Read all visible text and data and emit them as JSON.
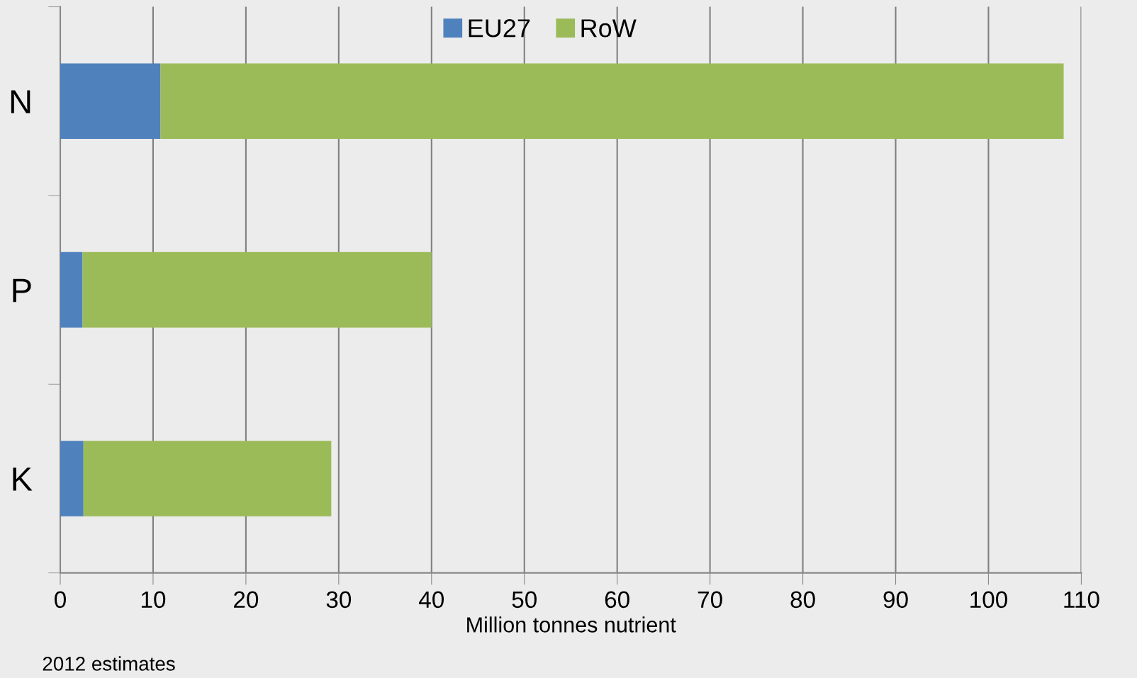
{
  "chart_data": {
    "type": "bar",
    "orientation": "horizontal",
    "stacked": true,
    "categories": [
      "N",
      "P",
      "K"
    ],
    "series": [
      {
        "name": "EU27",
        "color": "#4f81bd",
        "values": [
          10.8,
          2.4,
          2.5
        ]
      },
      {
        "name": "RoW",
        "color": "#9bbb59",
        "values": [
          97.3,
          37.6,
          26.7
        ]
      }
    ],
    "xlim": [
      0,
      110
    ],
    "xticks": [
      0,
      10,
      20,
      30,
      40,
      50,
      60,
      70,
      80,
      90,
      100,
      110
    ],
    "xlabel": "Million tonnes nutrient",
    "annotations": [
      "2012 estimates"
    ],
    "grid": "x",
    "legend": "top"
  }
}
